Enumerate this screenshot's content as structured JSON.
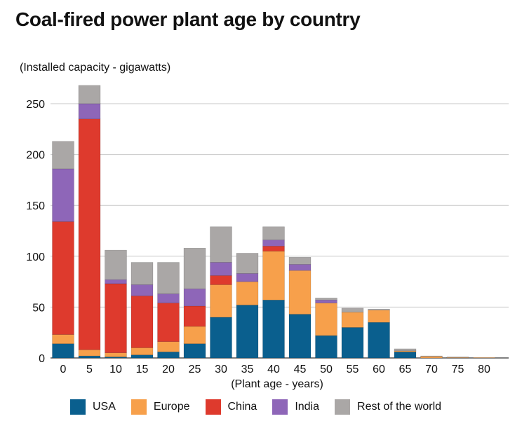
{
  "title": "Coal-fired power plant age by country",
  "chart_data": {
    "type": "bar",
    "stacked": true,
    "title": "Coal-fired power plant age by country",
    "ylabel": "(Installed capacity - gigawatts)",
    "xlabel": "(Plant age - years)",
    "categories": [
      "0",
      "5",
      "10",
      "15",
      "20",
      "25",
      "30",
      "35",
      "40",
      "45",
      "50",
      "55",
      "60",
      "65",
      "70",
      "75",
      "80"
    ],
    "ylim": [
      0,
      250
    ],
    "yticks": [
      0,
      50,
      100,
      150,
      200,
      250
    ],
    "grid": true,
    "legend_position": "bottom",
    "series": [
      {
        "name": "USA",
        "color": "#0a5f8e",
        "values": [
          14,
          2,
          1,
          3,
          6,
          14,
          40,
          52,
          57,
          43,
          22,
          30,
          35,
          6,
          0,
          0,
          0
        ]
      },
      {
        "name": "Europe",
        "color": "#f7a04b",
        "values": [
          9,
          6,
          4,
          7,
          10,
          17,
          32,
          23,
          48,
          43,
          32,
          15,
          12,
          1,
          1.5,
          0.5,
          0.4
        ]
      },
      {
        "name": "China",
        "color": "#de3a2d",
        "values": [
          111,
          227,
          68,
          51,
          38,
          20,
          9,
          0,
          5,
          0,
          0,
          0,
          0,
          0,
          0,
          0,
          0
        ]
      },
      {
        "name": "India",
        "color": "#8e66b8",
        "values": [
          52,
          15,
          4,
          11,
          9,
          17,
          13,
          8,
          6,
          6,
          3,
          0,
          0,
          0,
          0,
          0,
          0
        ]
      },
      {
        "name": "Rest of the world",
        "color": "#aaa7a6",
        "values": [
          27,
          18,
          29,
          22,
          31,
          40,
          35,
          20,
          13,
          7,
          2,
          4,
          1,
          2,
          0.5,
          0.5,
          0
        ]
      }
    ]
  }
}
